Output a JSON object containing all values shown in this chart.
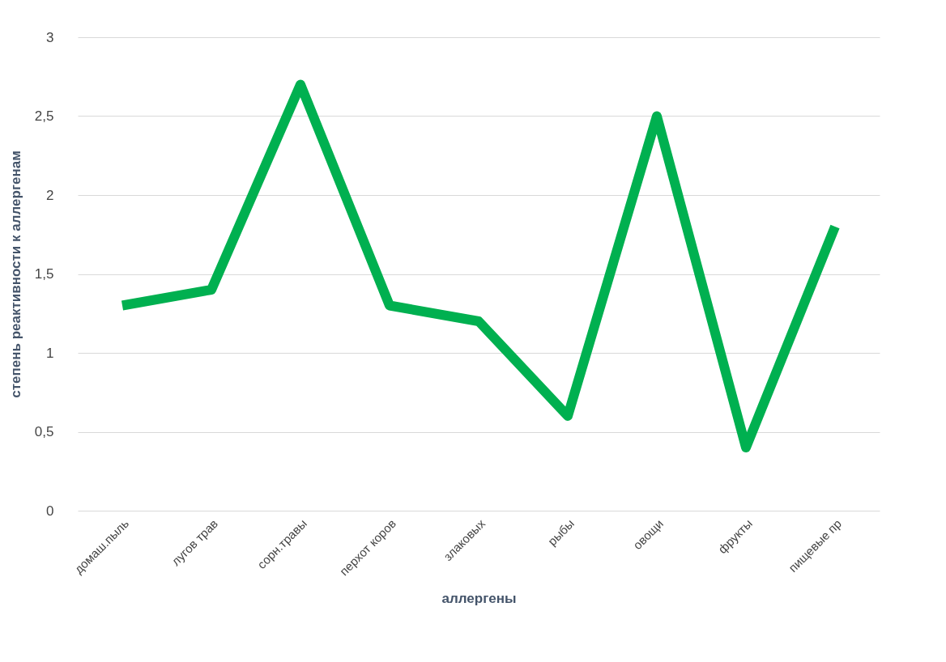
{
  "chart_data": {
    "type": "line",
    "xlabel": "аллергены",
    "ylabel": "степень реактивности к аллергенам",
    "categories": [
      "домаш.пыль",
      "лугов трав",
      "сорн.травы",
      "перхот коров",
      "злаковых",
      "рыбы",
      "овощи",
      "фрукты",
      "пищевые пр"
    ],
    "series": [
      {
        "color": "#00b050",
        "values": [
          1.3,
          1.4,
          2.7,
          1.3,
          1.2,
          0.6,
          2.5,
          0.4,
          1.8
        ]
      }
    ],
    "ylim": [
      0,
      3
    ],
    "yticks": [
      0,
      {
        "value": 0.5,
        "label": "0,5"
      },
      1,
      {
        "value": 1.5,
        "label": "1,5"
      },
      2,
      {
        "value": 2.5,
        "label": "2,5"
      },
      3
    ],
    "grid": "y",
    "marker": "none",
    "line_style": "solid",
    "legend": false
  }
}
